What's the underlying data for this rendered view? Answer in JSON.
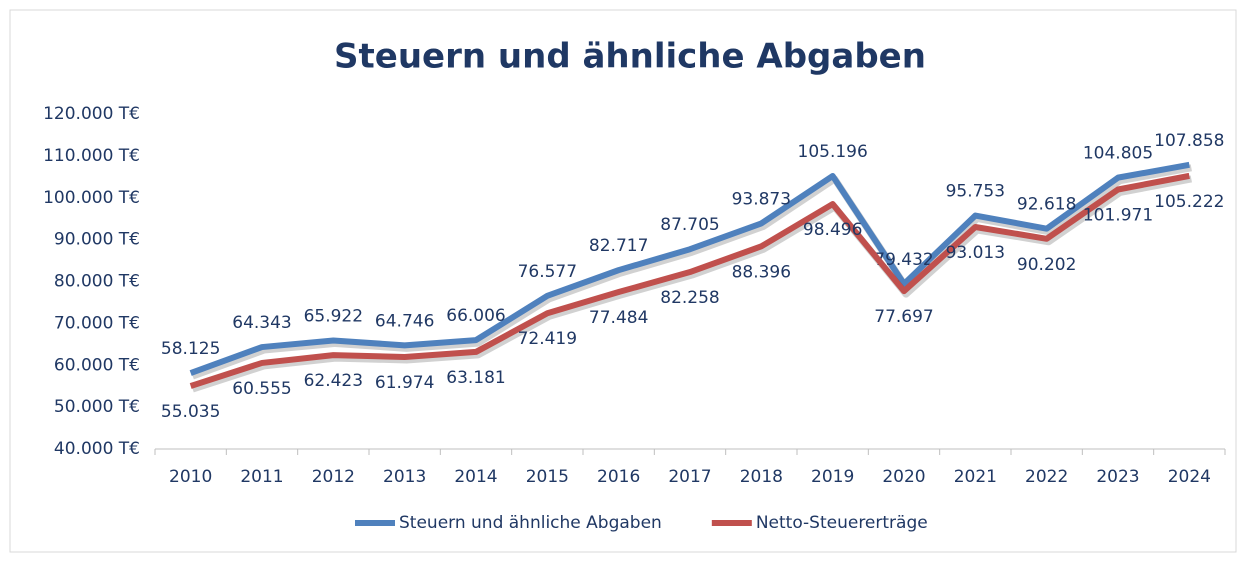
{
  "chart_data": {
    "type": "line",
    "title": "Steuern und ähnliche Abgaben",
    "categories": [
      "2010",
      "2011",
      "2012",
      "2013",
      "2014",
      "2015",
      "2016",
      "2017",
      "2018",
      "2019",
      "2020",
      "2021",
      "2022",
      "2023",
      "2024"
    ],
    "series": [
      {
        "name": "Steuern und ähnliche Abgaben",
        "color": "#4f81bd",
        "values": [
          58125,
          64343,
          65922,
          64746,
          66006,
          76577,
          82717,
          87705,
          93873,
          105196,
          79432,
          95753,
          92618,
          104805,
          107858
        ],
        "value_labels": [
          "58.125",
          "64.343",
          "65.922",
          "64.746",
          "66.006",
          "76.577",
          "82.717",
          "87.705",
          "93.873",
          "105.196",
          "79.432",
          "95.753",
          "92.618",
          "104.805",
          "107.858"
        ]
      },
      {
        "name": "Netto-Steuererträge",
        "color": "#c0504d",
        "values": [
          55035,
          60555,
          62423,
          61974,
          63181,
          72419,
          77484,
          82258,
          88396,
          98496,
          77697,
          93013,
          90202,
          101971,
          105222
        ],
        "value_labels": [
          "55.035",
          "60.555",
          "62.423",
          "61.974",
          "63.181",
          "72.419",
          "77.484",
          "82.258",
          "88.396",
          "98.496",
          "77.697",
          "93.013",
          "90.202",
          "101.971",
          "105.222"
        ]
      }
    ],
    "ylim": [
      40000,
      120000
    ],
    "yticks": [
      {
        "value": 40000,
        "label": "40.000 T€"
      },
      {
        "value": 50000,
        "label": "50.000 T€"
      },
      {
        "value": 60000,
        "label": "60.000 T€"
      },
      {
        "value": 70000,
        "label": "70.000 T€"
      },
      {
        "value": 80000,
        "label": "80.000 T€"
      },
      {
        "value": 90000,
        "label": "90.000 T€"
      },
      {
        "value": 100000,
        "label": "100.000 T€"
      },
      {
        "value": 110000,
        "label": "110.000 T€"
      },
      {
        "value": 120000,
        "label": "120.000 T€"
      }
    ],
    "grid": false,
    "legend": "bottom"
  }
}
